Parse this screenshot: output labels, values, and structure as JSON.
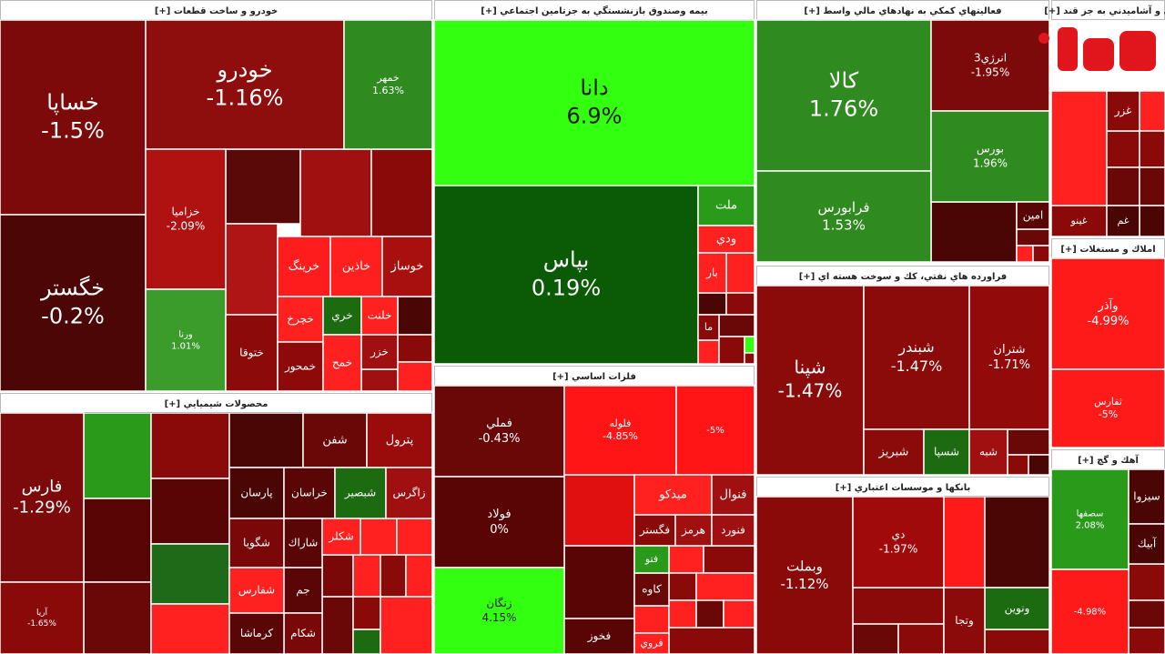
{
  "sectors": [
    {
      "title": "خودرو و ساخت قطعات [+]",
      "tiles": [
        {
          "label": "خساپا",
          "change": "-1.5%",
          "color": "#7d0a0a"
        },
        {
          "label": "خگستر",
          "change": "-0.2%",
          "color": "#4d0606"
        },
        {
          "label": "خودرو",
          "change": "-1.16%",
          "color": "#8e0d0d"
        },
        {
          "label": "خمهر",
          "change": "1.63%",
          "color": "#2f8a1f"
        },
        {
          "label": "خزامیا",
          "change": "-2.09%",
          "color": "#b01212"
        },
        {
          "label": "ورنا",
          "change": "1.01%",
          "color": "#3b9b2b"
        },
        {
          "label": "ختوقا",
          "color": "#8c0a0a"
        },
        {
          "label": "خرينگ",
          "color": "#ff1c1c"
        },
        {
          "label": "خاذين",
          "color": "#ff1f1f"
        },
        {
          "label": "خوساز",
          "color": "#a81010"
        },
        {
          "label": "خچرخ",
          "color": "#ff2020"
        },
        {
          "label": "خري",
          "color": "#1c6b10"
        },
        {
          "label": "خلنت",
          "color": "#ff2020"
        },
        {
          "label": "خمحور",
          "color": "#8e0a0a"
        },
        {
          "label": "خمح",
          "color": "#ff2020"
        },
        {
          "label": "خزر",
          "color": "#a01010"
        }
      ]
    },
    {
      "title": "محصولات شيميايي [+]",
      "tiles": [
        {
          "label": "فارس",
          "change": "-1.29%",
          "color": "#7d0a0a"
        },
        {
          "label": "آريا",
          "change": "-1.65%",
          "color": "#8a0a0a"
        },
        {
          "label": "شفن",
          "color": "#6a0808"
        },
        {
          "label": "پترول",
          "color": "#9a0c0c"
        },
        {
          "label": "پارسان",
          "color": "#4a0505"
        },
        {
          "label": "خراسان",
          "color": "#5a0606"
        },
        {
          "label": "شبصير",
          "color": "#1c6b10"
        },
        {
          "label": "زاگرس",
          "color": "#a01010"
        },
        {
          "label": "شگويا",
          "color": "#7a0808"
        },
        {
          "label": "شاراك",
          "color": "#5a0606"
        },
        {
          "label": "شكلر",
          "color": "#ff2020"
        },
        {
          "label": "شفارس",
          "color": "#ff2020"
        },
        {
          "label": "جم",
          "color": "#5a0606"
        },
        {
          "label": "شكام",
          "color": "#7a0808"
        },
        {
          "label": "كرماشا",
          "color": "#5a0606"
        }
      ]
    },
    {
      "title": "بيمه وصندوق بازنشستگي به جزتامين اجتماعي [+]",
      "tiles": [
        {
          "label": "دانا",
          "change": "6.9%",
          "color": "#33ff11"
        },
        {
          "label": "بپاس",
          "change": "0.19%",
          "color": "#0b5a05"
        },
        {
          "label": "ملت",
          "color": "#2a9a1a"
        },
        {
          "label": "ودي",
          "color": "#ff2020"
        },
        {
          "label": "بار",
          "color": "#ff2020"
        },
        {
          "label": "ما",
          "color": "#8a0a0a"
        }
      ]
    },
    {
      "title": "فلزات اساسي [+]",
      "tiles": [
        {
          "label": "فملي",
          "change": "-0.43%",
          "color": "#6a0808"
        },
        {
          "label": "فولاد",
          "change": "0%",
          "color": "#5a0505"
        },
        {
          "label": "زنگان",
          "change": "4.15%",
          "color": "#33ff11"
        },
        {
          "label": "فلوله",
          "change": "-4.85%",
          "color": "#ff1515"
        },
        {
          "change": "-5%",
          "color": "#ff1515"
        },
        {
          "label": "ميدكو",
          "color": "#ff2020"
        },
        {
          "label": "فنوال",
          "color": "#a01010"
        },
        {
          "label": "فگستر",
          "color": "#8a0a0a"
        },
        {
          "label": "هرمز",
          "color": "#a01010"
        },
        {
          "label": "فنورد",
          "color": "#a01010"
        },
        {
          "label": "كاوه",
          "color": "#6a0808"
        },
        {
          "label": "فخوز",
          "color": "#5a0505"
        },
        {
          "label": "فروي",
          "color": "#ff2020"
        },
        {
          "label": "فتو",
          "color": "#2a9a1a"
        }
      ]
    },
    {
      "title": "فعاليتهاي كمكي به نهادهاي مالي واسط [+]",
      "tiles": [
        {
          "label": "كالا",
          "change": "1.76%",
          "color": "#2f8a1f"
        },
        {
          "label": "فرابورس",
          "change": "1.53%",
          "color": "#2f8a1f"
        },
        {
          "label": "انرژي3",
          "change": "-1.95%",
          "color": "#7d0a0a"
        },
        {
          "label": "بورس",
          "change": "1.96%",
          "color": "#2f8a1f"
        },
        {
          "label": "امين",
          "color": "#5a0505"
        }
      ]
    },
    {
      "title": "فراورده هاي نفتي، كك و سوخت هسته اي [+]",
      "tiles": [
        {
          "label": "شپنا",
          "change": "-1.47%",
          "color": "#8b0a0a"
        },
        {
          "label": "شبندر",
          "change": "-1.47%",
          "color": "#8b0a0a"
        },
        {
          "label": "شتران",
          "change": "-1.71%",
          "color": "#930a0a"
        },
        {
          "label": "شبريز",
          "color": "#8b0a0a"
        },
        {
          "label": "شسپا",
          "color": "#1c6b10"
        },
        {
          "label": "شبه",
          "color": "#a01010"
        }
      ]
    },
    {
      "title": "بانكها و موسسات اعتباري [+]",
      "tiles": [
        {
          "label": "وبملت",
          "change": "-1.12%",
          "color": "#8a0a0a"
        },
        {
          "label": "دي",
          "change": "-1.97%",
          "color": "#a00a0a"
        },
        {
          "label": "ونوين",
          "color": "#1c6b10"
        },
        {
          "label": "وتجا",
          "color": "#8b0a0a"
        }
      ]
    },
    {
      "title": "ي و آشاميدني به جز قند [+]",
      "tiles": [
        {
          "label": "غزر",
          "color": "#8a0a0a"
        },
        {
          "label": "غينو",
          "color": "#8a0a0a"
        },
        {
          "label": "غم",
          "color": "#4a0505"
        }
      ]
    },
    {
      "title": "املاك و مستغلات [+]",
      "tiles": [
        {
          "label": "وآذر",
          "change": "-4.99%",
          "color": "#ff1a1a"
        },
        {
          "label": "ثفارس",
          "change": "-5%",
          "color": "#ff1a1a"
        }
      ]
    },
    {
      "title": "آهك و گچ [+]",
      "tiles": [
        {
          "label": "سصفها",
          "change": "2.08%",
          "color": "#2a9a1a"
        },
        {
          "change": "-4.98%",
          "color": "#ff1a1a"
        },
        {
          "label": "سيزوا",
          "color": "#4a0505"
        },
        {
          "label": "آبيك",
          "color": "#4a0505"
        }
      ]
    }
  ]
}
